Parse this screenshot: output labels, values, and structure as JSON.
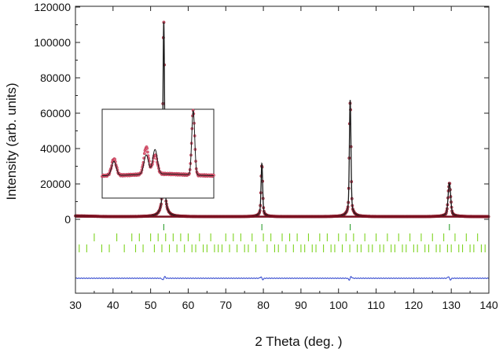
{
  "chart_data": {
    "type": "line",
    "title": "",
    "xlabel": "2 Theta (deg. )",
    "ylabel": "Intensity (arb. units)",
    "xlim": [
      30,
      140
    ],
    "ylim": [
      -40000,
      120000
    ],
    "x_ticks": [
      30,
      40,
      50,
      60,
      70,
      80,
      90,
      100,
      110,
      120,
      130,
      140
    ],
    "y_ticks": [
      0,
      20000,
      40000,
      60000,
      80000,
      100000,
      120000
    ],
    "grid": false,
    "legend": "none",
    "background": 1500,
    "peaks": [
      {
        "x": 53.5,
        "y": 110000
      },
      {
        "x": 79.6,
        "y": 30000
      },
      {
        "x": 103.1,
        "y": 66000
      },
      {
        "x": 129.5,
        "y": 19000
      }
    ],
    "colors": {
      "calculated": "#1a1a1a",
      "observed": "#e0607a",
      "reflections_main": "#2e9e2e",
      "reflections_secondary": "#7ed321",
      "difference": "#3a4fd0",
      "axis": "#222222"
    },
    "series": [
      {
        "style": "line",
        "role": "calculated"
      },
      {
        "style": "markers",
        "role": "observed"
      },
      {
        "style": "ticks",
        "role": "reflections-phase-1",
        "x": [
          53.5,
          79.6,
          103.1,
          129.5
        ]
      },
      {
        "style": "ticks",
        "role": "reflections-phase-2",
        "x": [
          35,
          41,
          45,
          47,
          50,
          52,
          54,
          56,
          58,
          60,
          63,
          66,
          70,
          72,
          74,
          77,
          80,
          82,
          85,
          87,
          89,
          92,
          95,
          97,
          100,
          102,
          104,
          107,
          110,
          113,
          116,
          119,
          122,
          125,
          128,
          131,
          134,
          137
        ]
      },
      {
        "style": "ticks",
        "role": "reflections-phase-3",
        "x": [
          31,
          33,
          37,
          39,
          43,
          46,
          48,
          51,
          53,
          55,
          57,
          59,
          61,
          62,
          64,
          65,
          67,
          68,
          69,
          71,
          73,
          75,
          76,
          78,
          81,
          83,
          84,
          86,
          88,
          90,
          91,
          93,
          94,
          96,
          98,
          99,
          101,
          103,
          105,
          106,
          108,
          109,
          111,
          112,
          114,
          115,
          117,
          118,
          120,
          121,
          123,
          124,
          126,
          127,
          129,
          130,
          132,
          133,
          135,
          136,
          138,
          139
        ]
      },
      {
        "style": "line",
        "role": "difference"
      }
    ],
    "inset": {
      "description": "zoom of low-angle region around main peak",
      "xlim": [
        38,
        57
      ],
      "peaks_calc": [
        {
          "x": 40,
          "y": 0.22
        },
        {
          "x": 45.5,
          "y": 0.3
        },
        {
          "x": 47,
          "y": 0.38
        },
        {
          "x": 53.5,
          "y": 1.0
        }
      ],
      "peaks_obs": [
        {
          "x": 40,
          "y": 0.26
        },
        {
          "x": 45.5,
          "y": 0.42
        },
        {
          "x": 47,
          "y": 0.3
        },
        {
          "x": 53.5,
          "y": 1.0
        }
      ]
    }
  }
}
